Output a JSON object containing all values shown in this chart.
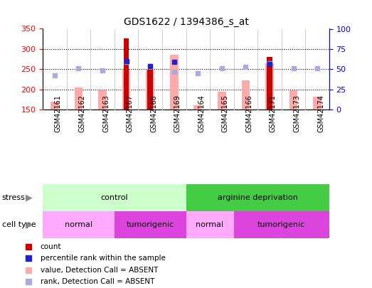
{
  "title": "GDS1622 / 1394386_s_at",
  "samples": [
    "GSM42161",
    "GSM42162",
    "GSM42163",
    "GSM42167",
    "GSM42168",
    "GSM42169",
    "GSM42164",
    "GSM42165",
    "GSM42166",
    "GSM42171",
    "GSM42173",
    "GSM42174"
  ],
  "count_values": [
    null,
    null,
    null,
    327,
    249,
    null,
    null,
    null,
    null,
    280,
    null,
    null
  ],
  "value_absent": [
    169,
    204,
    198,
    248,
    248,
    285,
    161,
    194,
    222,
    265,
    197,
    181
  ],
  "rank_absent": [
    235,
    252,
    247,
    268,
    258,
    244,
    240,
    252,
    255,
    265,
    252,
    253
  ],
  "percentile_rank": [
    null,
    null,
    null,
    270,
    258,
    268,
    null,
    null,
    null,
    263,
    null,
    null
  ],
  "ylim_left": [
    150,
    350
  ],
  "ylim_right": [
    0,
    100
  ],
  "yticks_left": [
    150,
    200,
    250,
    300,
    350
  ],
  "yticks_right": [
    0,
    25,
    50,
    75,
    100
  ],
  "bar_color_count": "#cc0000",
  "bar_color_value_absent": "#ffaaaa",
  "marker_color_rank": "#2222cc",
  "marker_color_rank_absent": "#aaaadd",
  "stress_groups": [
    {
      "label": "control",
      "start": 0,
      "end": 6,
      "color": "#ccffcc"
    },
    {
      "label": "arginine deprivation",
      "start": 6,
      "end": 12,
      "color": "#44cc44"
    }
  ],
  "cell_groups": [
    {
      "label": "normal",
      "start": 0,
      "end": 3,
      "color": "#ffaaff"
    },
    {
      "label": "tumorigenic",
      "start": 3,
      "end": 6,
      "color": "#dd44dd"
    },
    {
      "label": "normal",
      "start": 6,
      "end": 8,
      "color": "#ffaaff"
    },
    {
      "label": "tumorigenic",
      "start": 8,
      "end": 12,
      "color": "#dd44dd"
    }
  ],
  "legend_items": [
    {
      "label": "count",
      "color": "#cc0000"
    },
    {
      "label": "percentile rank within the sample",
      "color": "#2222cc"
    },
    {
      "label": "value, Detection Call = ABSENT",
      "color": "#ffaaaa"
    },
    {
      "label": "rank, Detection Call = ABSENT",
      "color": "#aaaadd"
    }
  ],
  "tick_bg_color": "#cccccc",
  "plot_bg_color": "#ffffff",
  "grid_color": "#000000",
  "grid_linestyle": ":",
  "grid_linewidth": 0.8
}
